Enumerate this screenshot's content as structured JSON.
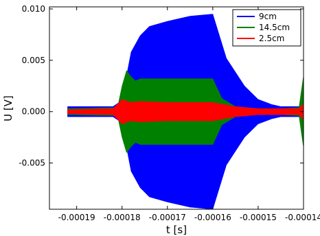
{
  "chart_data": {
    "type": "line",
    "title": "",
    "xlabel": "t [s]",
    "ylabel": "U [V]",
    "xlim": [
      -0.000196,
      -0.00014
    ],
    "ylim": [
      -0.0095,
      0.0102
    ],
    "x_ticks": [
      -0.00019,
      -0.00018,
      -0.00017,
      -0.00016,
      -0.00015,
      -0.00014
    ],
    "x_tick_labels": [
      "-0.00019",
      "-0.00018",
      "-0.00017",
      "-0.00016",
      "-0.00015",
      "-0.00014"
    ],
    "y_ticks": [
      0.01,
      0.005,
      0.0,
      -0.005
    ],
    "y_tick_labels": [
      "0.010",
      "0.005",
      "0.000",
      "-0.005"
    ],
    "grid": false,
    "legend_position": "top-right",
    "series": [
      {
        "name": "9cm",
        "color": "#0000ff",
        "envelope_t": [
          -0.000192,
          -0.000182,
          -0.00018,
          -0.000179,
          -0.000178,
          -0.000176,
          -0.000174,
          -0.00017,
          -0.000165,
          -0.00016,
          -0.000157,
          -0.000153,
          -0.00015,
          -0.000147,
          -0.000145,
          -0.00014
        ],
        "envelope_u": [
          0.0005,
          0.0005,
          0.0011,
          0.0035,
          0.0058,
          0.0074,
          0.0083,
          0.0088,
          0.0093,
          0.0095,
          0.0052,
          0.0025,
          0.0012,
          0.0007,
          0.0005,
          0.0005
        ]
      },
      {
        "name": "14.5cm",
        "color": "#008000",
        "envelope_t": [
          -0.000192,
          -0.000181,
          -0.00018,
          -0.000179,
          -0.000178,
          -0.000177,
          -0.000176,
          -0.00017,
          -0.000165,
          -0.00016,
          -0.000158,
          -0.000155,
          -0.00015,
          -0.000145,
          -0.000141,
          -0.0001405,
          -0.00014
        ],
        "envelope_u": [
          0.0003,
          0.0004,
          0.0025,
          0.004,
          0.0034,
          0.003,
          0.0032,
          0.0032,
          0.0032,
          0.0032,
          0.0013,
          0.0005,
          0.0003,
          0.0003,
          0.0004,
          0.002,
          0.0035
        ]
      },
      {
        "name": "2.5cm",
        "color": "#ff0000",
        "envelope_t": [
          -0.000192,
          -0.000182,
          -0.00018,
          -0.000178,
          -0.000176,
          -0.00017,
          -0.000165,
          -0.00016,
          -0.000155,
          -0.00015,
          -0.000141,
          -0.00014
        ],
        "envelope_u": [
          0.0002,
          0.0003,
          0.0012,
          0.0009,
          0.001,
          0.0009,
          0.0009,
          0.0009,
          0.0005,
          0.0003,
          0.0003,
          0.0008
        ]
      }
    ]
  }
}
